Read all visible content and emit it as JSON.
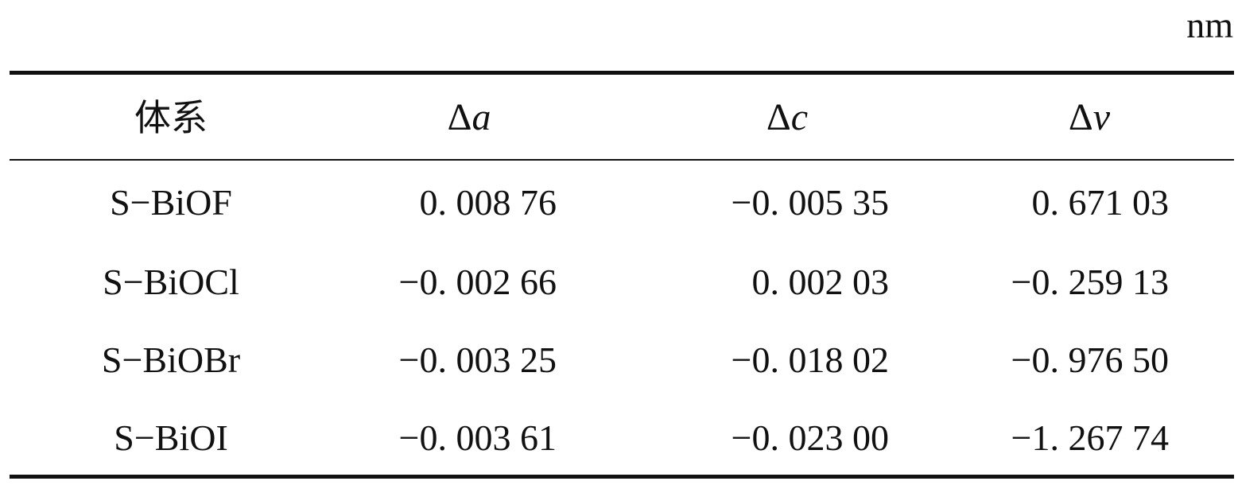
{
  "unit": "nm",
  "table": {
    "headers": [
      {
        "text": "体系"
      },
      {
        "delta": "Δ",
        "var": "a"
      },
      {
        "delta": "Δ",
        "var": "c"
      },
      {
        "delta": "Δ",
        "var": "v"
      }
    ],
    "rows": [
      {
        "system": "S−BiOF",
        "da": "0. 008 76",
        "dc": "−0. 005 35",
        "dv": "0. 671 03"
      },
      {
        "system": "S−BiOCl",
        "da": "−0. 002 66",
        "dc": "0. 002 03",
        "dv": "−0. 259 13"
      },
      {
        "system": "S−BiOBr",
        "da": "−0. 003 25",
        "dc": "−0. 018 02",
        "dv": "−0. 976 50"
      },
      {
        "system": "S−BiOI",
        "da": "−0. 003 61",
        "dc": "−0. 023 00",
        "dv": "−1. 267 74"
      }
    ]
  }
}
